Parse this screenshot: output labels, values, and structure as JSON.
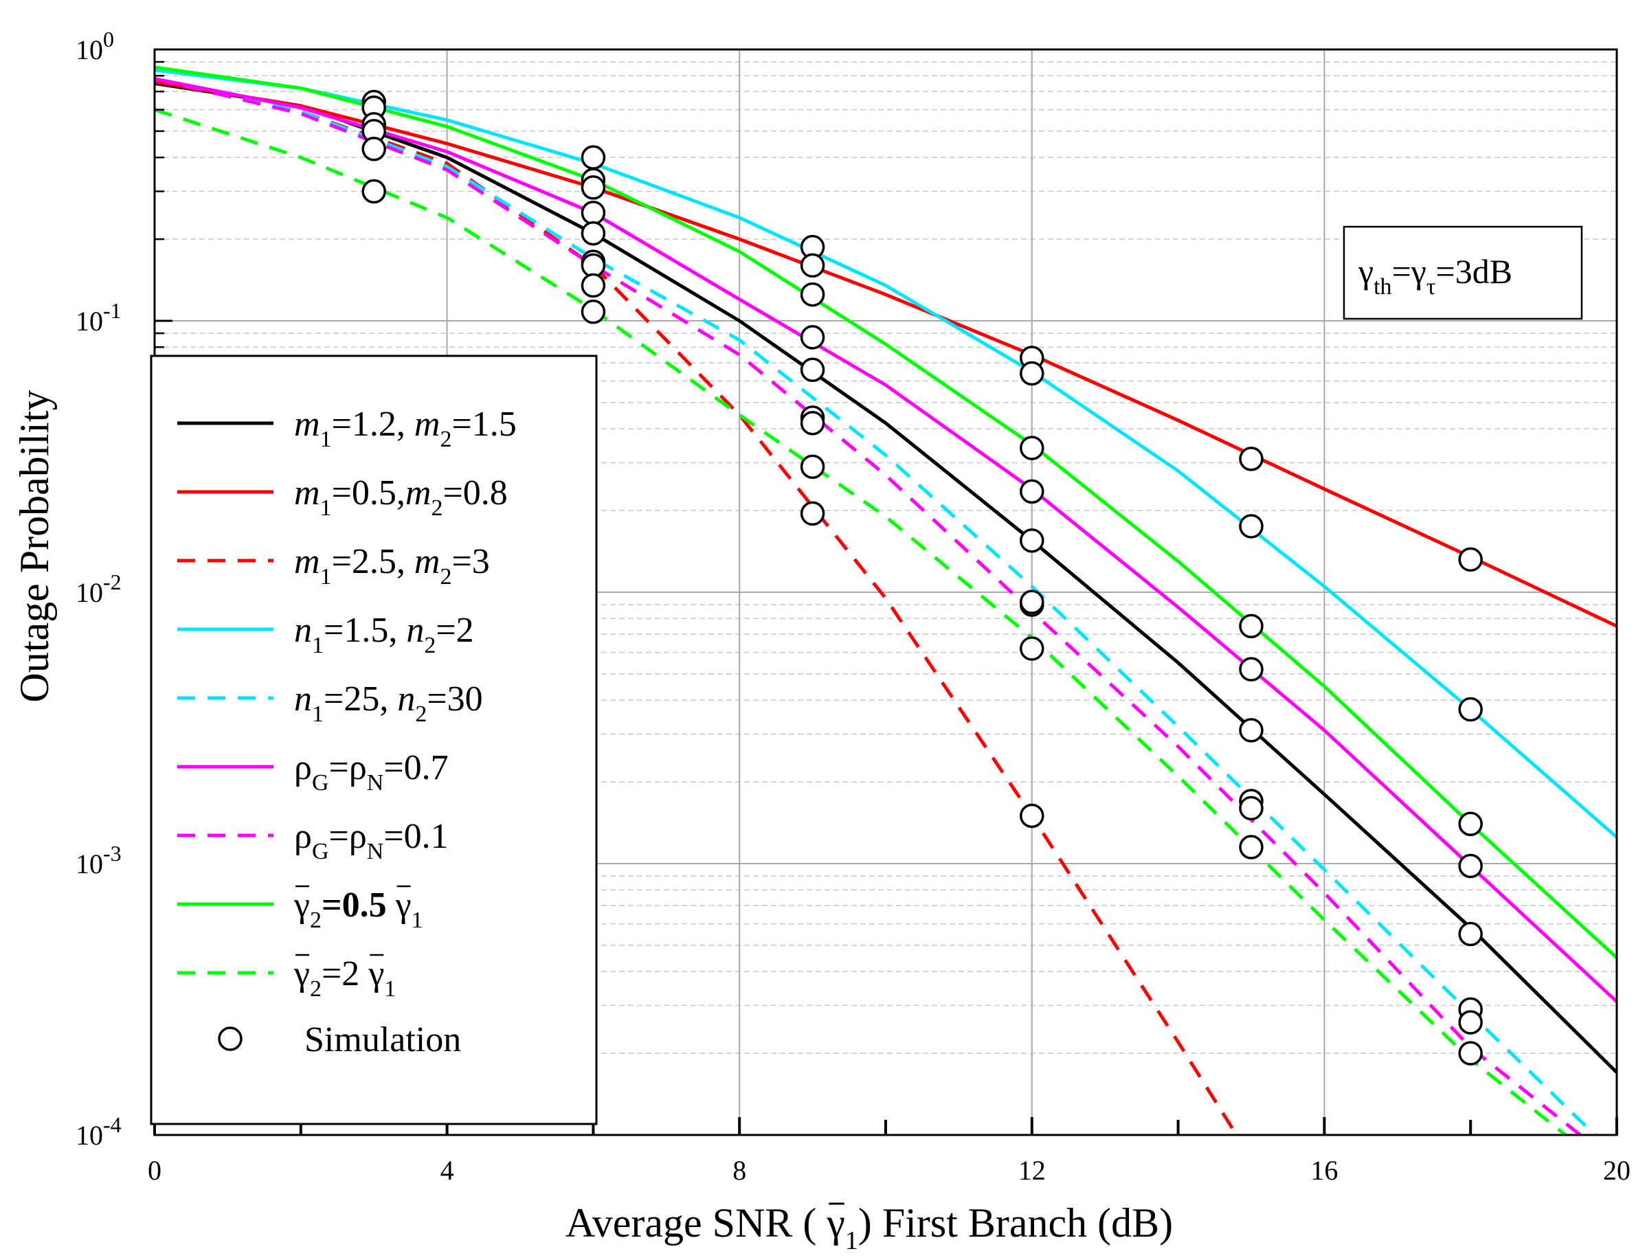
{
  "chart_data": {
    "type": "line",
    "xlabel_parts": [
      "Average SNR ( ",
      "γ",
      "1",
      ") First Branch (dB)"
    ],
    "ylabel": "Outage Probability",
    "xlim": [
      0,
      20
    ],
    "ylim": [
      0.0001,
      1
    ],
    "yscale": "log",
    "grid": true,
    "x_ticks": [
      "0",
      "4",
      "8",
      "12",
      "16",
      "20"
    ],
    "y_ticks": [
      {
        "base": "10",
        "exp": "0"
      },
      {
        "base": "10",
        "exp": "-1"
      },
      {
        "base": "10",
        "exp": "-2"
      },
      {
        "base": "10",
        "exp": "-3"
      },
      {
        "base": "10",
        "exp": "-4"
      }
    ],
    "annotation": {
      "parts": [
        "γ",
        "th",
        "=γ",
        "τ",
        "=3dB"
      ]
    },
    "legend_position": "left",
    "series": [
      {
        "key": "m12_15",
        "color": "#000000",
        "dash": false,
        "label": [
          {
            "t": "m",
            "i": true
          },
          {
            "t": "1",
            "sub": true
          },
          {
            "t": "=1.2, "
          },
          {
            "t": "m",
            "i": true
          },
          {
            "t": "2",
            "sub": true
          },
          {
            "t": "=1.5"
          }
        ],
        "x": [
          0,
          2,
          4,
          6,
          8,
          10,
          12,
          14,
          16,
          18,
          20
        ],
        "y": [
          0.75,
          0.62,
          0.4,
          0.21,
          0.1,
          0.042,
          0.0155,
          0.0055,
          0.0018,
          0.00058,
          0.00017
        ]
      },
      {
        "key": "m05_08",
        "color": "#ff0000",
        "dash": false,
        "label": [
          {
            "t": "m",
            "i": true
          },
          {
            "t": "1",
            "sub": true
          },
          {
            "t": "=0.5,"
          },
          {
            "t": "m",
            "i": true
          },
          {
            "t": "2",
            "sub": true
          },
          {
            "t": "=0.8"
          }
        ],
        "x": [
          0,
          2,
          4,
          6,
          8,
          10,
          12,
          14,
          16,
          18,
          20
        ],
        "y": [
          0.76,
          0.62,
          0.45,
          0.31,
          0.2,
          0.125,
          0.075,
          0.043,
          0.024,
          0.0135,
          0.0075
        ]
      },
      {
        "key": "m25_3",
        "color": "#ff0000",
        "dash": true,
        "label": [
          {
            "t": "m",
            "i": true
          },
          {
            "t": "1",
            "sub": true
          },
          {
            "t": "=2.5, "
          },
          {
            "t": "m",
            "i": true
          },
          {
            "t": "2",
            "sub": true
          },
          {
            "t": "=3"
          }
        ],
        "x": [
          0,
          2,
          4,
          6,
          8,
          10,
          12,
          14,
          14.8
        ],
        "y": [
          0.77,
          0.59,
          0.38,
          0.16,
          0.045,
          0.0095,
          0.0015,
          0.00022,
          0.0001
        ]
      },
      {
        "key": "n15_2",
        "color": "#00e5ff",
        "dash": false,
        "label": [
          {
            "t": "n",
            "i": true
          },
          {
            "t": "1",
            "sub": true
          },
          {
            "t": "=1.5, "
          },
          {
            "t": "n",
            "i": true
          },
          {
            "t": "2",
            "sub": true
          },
          {
            "t": "=2"
          }
        ],
        "x": [
          0,
          2,
          4,
          6,
          8,
          10,
          12,
          14,
          16,
          18,
          20
        ],
        "y": [
          0.84,
          0.72,
          0.55,
          0.38,
          0.24,
          0.135,
          0.065,
          0.028,
          0.0105,
          0.0037,
          0.00125
        ]
      },
      {
        "key": "n25_30",
        "color": "#00e5ff",
        "dash": true,
        "label": [
          {
            "t": "n",
            "i": true
          },
          {
            "t": "1",
            "sub": true
          },
          {
            "t": "=25, "
          },
          {
            "t": "n",
            "i": true
          },
          {
            "t": "2",
            "sub": true
          },
          {
            "t": "=30"
          }
        ],
        "x": [
          0,
          2,
          4,
          6,
          8,
          10,
          12,
          14,
          16,
          18,
          19.7
        ],
        "y": [
          0.78,
          0.59,
          0.37,
          0.17,
          0.085,
          0.032,
          0.0105,
          0.0032,
          0.00095,
          0.00028,
          0.0001
        ]
      },
      {
        "key": "rho07",
        "color": "#ff00ff",
        "dash": false,
        "label": [
          {
            "t": "ρ"
          },
          {
            "t": "G",
            "sub": true
          },
          {
            "t": "=ρ"
          },
          {
            "t": "N",
            "sub": true
          },
          {
            "t": "=0.7"
          }
        ],
        "x": [
          0,
          2,
          4,
          6,
          8,
          10,
          12,
          14,
          16,
          18,
          20
        ],
        "y": [
          0.78,
          0.61,
          0.42,
          0.25,
          0.12,
          0.058,
          0.024,
          0.0088,
          0.0031,
          0.00098,
          0.00031
        ]
      },
      {
        "key": "rho01",
        "color": "#ff00ff",
        "dash": true,
        "label": [
          {
            "t": "ρ"
          },
          {
            "t": "G",
            "sub": true
          },
          {
            "t": "=ρ"
          },
          {
            "t": "N",
            "sub": true
          },
          {
            "t": "=0.1"
          }
        ],
        "x": [
          0,
          2,
          4,
          6,
          8,
          10,
          12,
          14,
          16,
          18,
          19.5
        ],
        "y": [
          0.78,
          0.58,
          0.36,
          0.16,
          0.075,
          0.027,
          0.0085,
          0.0027,
          0.00078,
          0.00021,
          0.0001
        ]
      },
      {
        "key": "g2_05",
        "color": "#00ff00",
        "dash": false,
        "label": [
          {
            "t": "γ",
            "over": true
          },
          {
            "t": "2",
            "sub": true
          },
          {
            "t": "=0.5  ",
            "b": true
          },
          {
            "t": "γ",
            "over": true
          },
          {
            "t": "1",
            "sub": true
          }
        ],
        "x": [
          0,
          2,
          4,
          6,
          8,
          10,
          12,
          14,
          16,
          18,
          20
        ],
        "y": [
          0.86,
          0.72,
          0.52,
          0.33,
          0.18,
          0.082,
          0.035,
          0.013,
          0.0045,
          0.0014,
          0.00045
        ]
      },
      {
        "key": "g2_2",
        "color": "#00ff00",
        "dash": true,
        "label": [
          {
            "t": "γ",
            "over": true
          },
          {
            "t": "2",
            "sub": true
          },
          {
            "t": "=2  "
          },
          {
            "t": "γ",
            "over": true
          },
          {
            "t": "1",
            "sub": true
          }
        ],
        "x": [
          0,
          2,
          4,
          6,
          8,
          10,
          12,
          14,
          16,
          18,
          19.3
        ],
        "y": [
          0.6,
          0.4,
          0.24,
          0.11,
          0.045,
          0.019,
          0.0068,
          0.0021,
          0.00062,
          0.00019,
          0.0001
        ]
      }
    ],
    "simulation": {
      "label": "Simulation",
      "points": [
        [
          3,
          0.64
        ],
        [
          3,
          0.61
        ],
        [
          3,
          0.53
        ],
        [
          3,
          0.5
        ],
        [
          3,
          0.43
        ],
        [
          3,
          0.3
        ],
        [
          6,
          0.4
        ],
        [
          6,
          0.33
        ],
        [
          6,
          0.31
        ],
        [
          6,
          0.25
        ],
        [
          6,
          0.21
        ],
        [
          6,
          0.165
        ],
        [
          6,
          0.16
        ],
        [
          6,
          0.135
        ],
        [
          6,
          0.108
        ],
        [
          9,
          0.187
        ],
        [
          9,
          0.16
        ],
        [
          9,
          0.125
        ],
        [
          9,
          0.087
        ],
        [
          9,
          0.066
        ],
        [
          9,
          0.044
        ],
        [
          9,
          0.042
        ],
        [
          9,
          0.029
        ],
        [
          9,
          0.0195
        ],
        [
          12,
          0.073
        ],
        [
          12,
          0.064
        ],
        [
          12,
          0.034
        ],
        [
          12,
          0.0235
        ],
        [
          12,
          0.0155
        ],
        [
          12,
          0.009
        ],
        [
          12,
          0.0092
        ],
        [
          12,
          0.0062
        ],
        [
          12,
          0.0015
        ],
        [
          15,
          0.031
        ],
        [
          15,
          0.0175
        ],
        [
          15,
          0.0075
        ],
        [
          15,
          0.0052
        ],
        [
          15,
          0.0031
        ],
        [
          15,
          0.0017
        ],
        [
          15,
          0.0016
        ],
        [
          15,
          0.00115
        ],
        [
          18,
          0.0132
        ],
        [
          18,
          0.0037
        ],
        [
          18,
          0.0014
        ],
        [
          18,
          0.00098
        ],
        [
          18,
          0.00055
        ],
        [
          18,
          0.00029
        ],
        [
          18,
          0.00026
        ],
        [
          18,
          0.0002
        ]
      ]
    }
  }
}
